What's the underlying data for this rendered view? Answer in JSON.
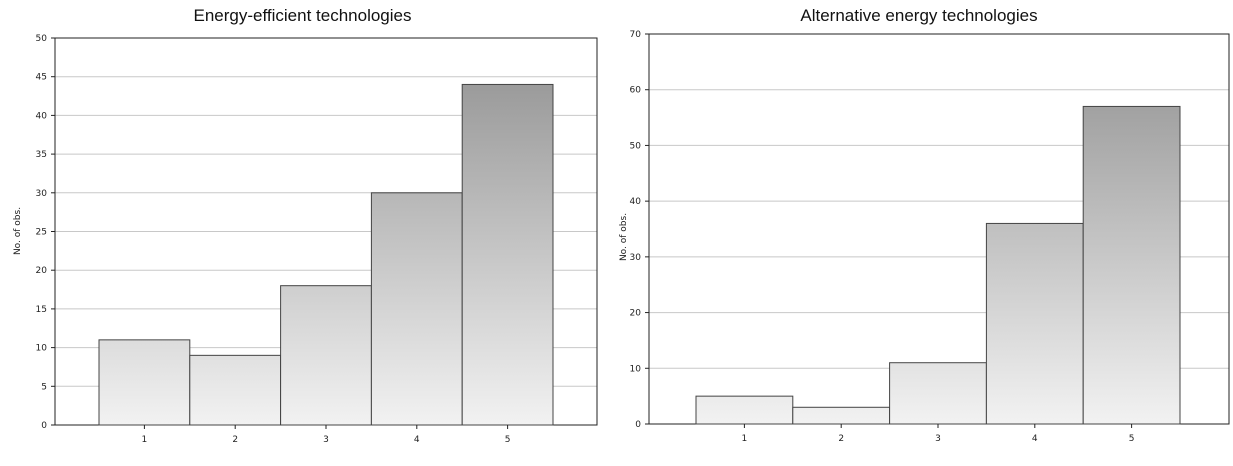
{
  "chart_data": [
    {
      "type": "bar",
      "title": "Energy-efficient technologies",
      "xlabel": "",
      "ylabel": "No. of obs.",
      "categories": [
        "1",
        "2",
        "3",
        "4",
        "5"
      ],
      "values": [
        11,
        9,
        18,
        30,
        44
      ],
      "ylim": [
        0,
        50
      ],
      "yticks": [
        0,
        5,
        10,
        15,
        20,
        25,
        30,
        35,
        40,
        45,
        50
      ],
      "grid": true,
      "bar_fill": [
        "#f2f2f2",
        "#8f8f8f"
      ],
      "bar_stroke": "#444444"
    },
    {
      "type": "bar",
      "title": "Alternative energy technologies",
      "xlabel": "",
      "ylabel": "No. of obs.",
      "categories": [
        "1",
        "2",
        "3",
        "4",
        "5"
      ],
      "values": [
        5,
        3,
        11,
        36,
        57
      ],
      "ylim": [
        0,
        70
      ],
      "yticks": [
        0,
        10,
        20,
        30,
        40,
        50,
        60,
        70
      ],
      "grid": true,
      "bar_fill": [
        "#f2f2f2",
        "#8f8f8f"
      ],
      "bar_stroke": "#444444"
    }
  ]
}
